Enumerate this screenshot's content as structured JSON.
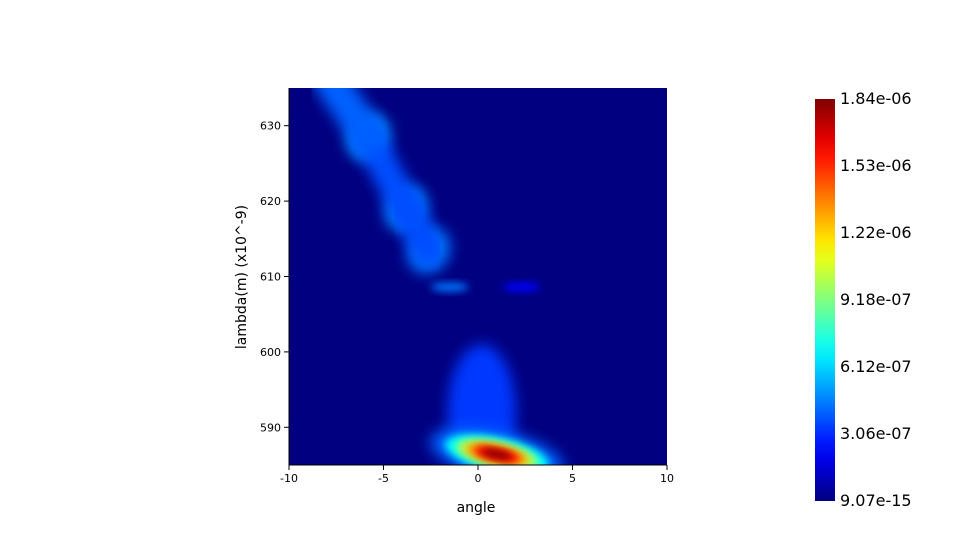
{
  "chart_data": {
    "type": "heatmap",
    "title": "",
    "xlabel": "angle",
    "ylabel": "lambda(m) (x10^-9)",
    "xlim": [
      -10,
      10
    ],
    "ylim": [
      585,
      635
    ],
    "x_ticks": [
      -10,
      -5,
      0,
      5,
      10
    ],
    "x_tick_labels": [
      "-10",
      "-5",
      "0",
      "5",
      "10"
    ],
    "y_ticks": [
      590,
      600,
      610,
      620,
      630
    ],
    "y_tick_labels": [
      "590",
      "600",
      "610",
      "620",
      "630"
    ],
    "colormap": "jet",
    "colorbar": {
      "min": 9.07e-15,
      "max": 1.84e-06,
      "labels": [
        "1.84e-06",
        "1.53e-06",
        "1.22e-06",
        "9.18e-07",
        "6.12e-07",
        "3.06e-07",
        "9.07e-15"
      ]
    },
    "features": [
      {
        "angle": 1.0,
        "lambda": 586.4,
        "intensity": 1.84e-06
      },
      {
        "angle": -1.5,
        "lambda": 608.6,
        "intensity": 3.5e-07
      },
      {
        "angle": 2.3,
        "lambda": 608.6,
        "intensity": 1.4e-07
      },
      {
        "angle": -2.6,
        "lambda": 613.5,
        "intensity": 4e-07
      },
      {
        "angle": -3.8,
        "lambda": 619.0,
        "intensity": 4.3e-07
      },
      {
        "angle": -5.8,
        "lambda": 628.5,
        "intensity": 4.6e-07
      }
    ]
  },
  "colors": {
    "background": "#000080",
    "jet_stops": [
      "#00007f",
      "#0000ff",
      "#00ffff",
      "#ffff00",
      "#ff0000",
      "#7f0000"
    ]
  }
}
